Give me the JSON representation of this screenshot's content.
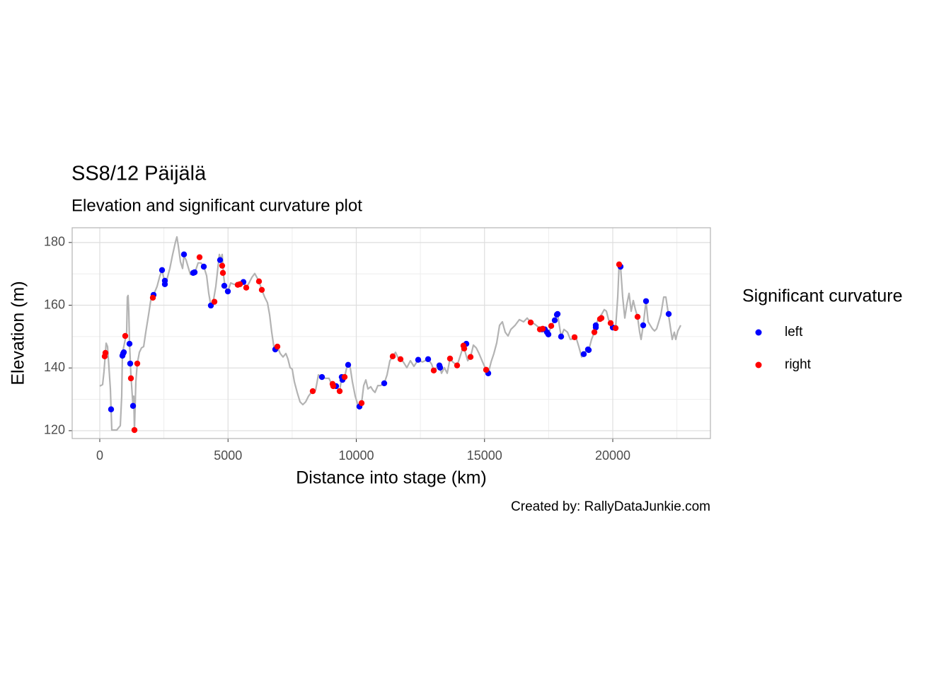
{
  "chart_data": {
    "type": "scatter",
    "title": "SS8/12 Päijälä",
    "subtitle": "Elevation and significant curvature plot",
    "x_label": "Distance into stage (km)",
    "y_label": "Elevation (m)",
    "caption": "Created by: RallyDataJunkie.com",
    "legend_title": "Significant curvature",
    "xlim": [
      -1076,
      23807
    ],
    "ylim": [
      117.5,
      184.7
    ],
    "xticks": [
      0,
      5000,
      10000,
      15000,
      20000
    ],
    "yticks": [
      120,
      140,
      160,
      180
    ],
    "grid": true,
    "line": {
      "color": "#b3b3b3",
      "x": [
        0,
        110,
        166,
        248,
        303,
        359,
        414,
        441,
        469,
        662,
        800,
        855,
        883,
        993,
        1048,
        1076,
        1103,
        1131,
        1159,
        1214,
        1269,
        1297,
        1324,
        1352,
        1407,
        1462,
        1545,
        1628,
        1710,
        1793,
        1903,
        1986,
        2097,
        2234,
        2345,
        2428,
        2538,
        2621,
        2731,
        2841,
        2952,
        3007,
        3062,
        3145,
        3228,
        3283,
        3366,
        3448,
        3531,
        3641,
        3724,
        3834,
        3945,
        4055,
        4166,
        4248,
        4331,
        4441,
        4524,
        4607,
        4662,
        4717,
        4772,
        4828,
        4883,
        4993,
        5103,
        5214,
        5379,
        5490,
        5600,
        5710,
        5821,
        5931,
        6041,
        6124,
        6207,
        6317,
        6428,
        6538,
        6621,
        6703,
        6786,
        6841,
        6924,
        7034,
        7145,
        7255,
        7338,
        7421,
        7503,
        7586,
        7697,
        7807,
        7917,
        8028,
        8138,
        8248,
        8303,
        8414,
        8524,
        8662,
        8800,
        8938,
        9021,
        9131,
        9214,
        9352,
        9434,
        9545,
        9628,
        9683,
        9766,
        9848,
        9959,
        10041,
        10124,
        10207,
        10290,
        10372,
        10455,
        10566,
        10648,
        10731,
        10841,
        10952,
        11090,
        11200,
        11310,
        11421,
        11531,
        11614,
        11724,
        11834,
        11972,
        12110,
        12248,
        12414,
        12579,
        12800,
        12938,
        13021,
        13131,
        13241,
        13324,
        13434,
        13545,
        13655,
        13766,
        13931,
        14041,
        14179,
        14262,
        14345,
        14455,
        14566,
        14676,
        14786,
        14924,
        15062,
        15145,
        15255,
        15366,
        15476,
        15586,
        15697,
        15807,
        15917,
        16028,
        16193,
        16359,
        16524,
        16662,
        16800,
        16938,
        17076,
        17159,
        17269,
        17379,
        17490,
        17600,
        17738,
        17848,
        17986,
        18097,
        18234,
        18345,
        18455,
        18566,
        18676,
        18786,
        18869,
        18979,
        19062,
        19172,
        19283,
        19338,
        19448,
        19559,
        19669,
        19752,
        19834,
        19917,
        20000,
        20110,
        20193,
        20248,
        20303,
        20386,
        20469,
        20552,
        20634,
        20717,
        20800,
        20883,
        20966,
        21048,
        21103,
        21186,
        21297,
        21379,
        21462,
        21545,
        21628,
        21710,
        21793,
        21876,
        21986,
        22069,
        22152,
        22234,
        22317,
        22400,
        22455,
        22538,
        22648
      ],
      "values": [
        134.2,
        134.7,
        138.9,
        147.9,
        146.8,
        140.1,
        133.3,
        126.6,
        120.2,
        120.2,
        121.6,
        131.0,
        144.6,
        149.1,
        151.4,
        162.6,
        163.1,
        158.1,
        148.2,
        137.8,
        131.0,
        127.9,
        131.0,
        120.2,
        135.6,
        141.4,
        145.0,
        146.4,
        146.8,
        151.4,
        157.0,
        161.5,
        163.3,
        166.0,
        169.4,
        171.2,
        167.1,
        168.3,
        171.7,
        176.2,
        180.2,
        181.8,
        178.9,
        173.9,
        171.7,
        175.7,
        174.4,
        172.1,
        169.8,
        170.3,
        170.8,
        173.5,
        173.5,
        172.3,
        169.4,
        163.8,
        159.9,
        162.0,
        166.0,
        172.1,
        176.2,
        174.4,
        176.2,
        169.4,
        166.0,
        164.4,
        167.1,
        166.7,
        166.5,
        166.7,
        167.4,
        165.6,
        167.1,
        168.9,
        170.1,
        168.9,
        167.6,
        164.9,
        162.6,
        160.8,
        157.0,
        151.4,
        146.8,
        145.9,
        146.8,
        144.6,
        143.5,
        144.6,
        142.8,
        140.1,
        139.6,
        135.6,
        132.2,
        129.2,
        128.3,
        129.2,
        131.0,
        132.2,
        132.6,
        132.9,
        137.8,
        137.1,
        136.7,
        136.7,
        135.1,
        134.4,
        134.2,
        132.6,
        137.1,
        137.1,
        140.1,
        141.0,
        140.1,
        135.6,
        131.0,
        128.8,
        127.7,
        128.8,
        134.4,
        136.2,
        133.3,
        134.0,
        132.9,
        132.2,
        134.4,
        134.4,
        135.1,
        137.8,
        142.3,
        143.7,
        145.0,
        143.5,
        142.8,
        141.9,
        140.1,
        142.3,
        140.5,
        142.6,
        141.9,
        142.8,
        141.2,
        139.2,
        140.1,
        140.8,
        138.3,
        140.1,
        138.3,
        143.0,
        141.9,
        140.8,
        143.5,
        147.1,
        144.6,
        142.3,
        143.5,
        147.3,
        146.4,
        144.6,
        141.9,
        139.4,
        138.3,
        141.9,
        144.6,
        148.0,
        153.6,
        154.7,
        151.4,
        150.2,
        152.3,
        153.6,
        155.4,
        154.7,
        155.9,
        154.5,
        154.1,
        153.2,
        152.3,
        152.5,
        151.4,
        150.7,
        153.4,
        155.2,
        157.2,
        150.0,
        152.3,
        151.4,
        149.1,
        149.3,
        149.8,
        146.8,
        143.5,
        144.4,
        145.7,
        145.7,
        149.1,
        151.4,
        153.6,
        155.9,
        157.0,
        158.6,
        158.1,
        155.4,
        154.3,
        152.9,
        152.7,
        162.6,
        173.0,
        172.3,
        162.6,
        155.9,
        160.4,
        163.8,
        158.1,
        161.5,
        158.6,
        156.3,
        151.4,
        149.1,
        153.6,
        161.3,
        154.7,
        153.6,
        152.5,
        151.8,
        152.5,
        154.7,
        157.0,
        162.6,
        162.6,
        158.1,
        153.6,
        149.1,
        151.4,
        149.1,
        151.8,
        153.6
      ]
    },
    "series": [
      {
        "name": "left",
        "color": "#0000ff",
        "x": [
          441,
          883,
          910,
          938,
          1159,
          1186,
          1297,
          2097,
          2428,
          2538,
          2538,
          3283,
          3641,
          3697,
          4055,
          4331,
          4690,
          4855,
          4993,
          5600,
          6841,
          8662,
          9214,
          9434,
          9462,
          9683,
          10124,
          11090,
          12414,
          12800,
          13241,
          13269,
          14290,
          15145,
          17241,
          17352,
          17434,
          17490,
          17738,
          17821,
          17848,
          17986,
          18869,
          19034,
          19062,
          19338,
          19338,
          20000,
          20303,
          21186,
          21297,
          22179
        ],
        "values": [
          126.8,
          143.9,
          144.6,
          145.0,
          147.7,
          141.4,
          127.9,
          163.3,
          171.2,
          167.8,
          166.7,
          176.2,
          170.3,
          170.5,
          172.3,
          159.9,
          174.4,
          166.2,
          164.4,
          167.4,
          145.9,
          137.1,
          134.2,
          137.1,
          136.2,
          141.0,
          127.7,
          135.1,
          142.6,
          142.8,
          140.8,
          140.1,
          147.7,
          138.3,
          152.3,
          152.3,
          151.4,
          150.7,
          155.2,
          157.0,
          157.2,
          150.0,
          144.4,
          145.9,
          145.7,
          153.6,
          152.9,
          152.9,
          172.3,
          153.6,
          161.3,
          157.2
        ]
      },
      {
        "name": "right",
        "color": "#ff0000",
        "x": [
          221,
          193,
          993,
          1214,
          1352,
          1462,
          2069,
          3890,
          4469,
          4772,
          4800,
          5379,
          5462,
          5710,
          6207,
          6317,
          6924,
          8303,
          9076,
          9103,
          9352,
          9545,
          10207,
          11421,
          11724,
          13021,
          13655,
          13931,
          14179,
          14207,
          14455,
          15062,
          16800,
          17159,
          17269,
          17600,
          18510,
          19283,
          19503,
          19559,
          19917,
          20110,
          20248,
          20966
        ],
        "values": [
          144.8,
          143.7,
          150.2,
          136.7,
          120.2,
          141.4,
          162.4,
          175.3,
          161.1,
          172.6,
          170.3,
          166.5,
          166.7,
          165.6,
          167.6,
          164.9,
          146.8,
          132.6,
          134.9,
          134.2,
          132.6,
          137.1,
          128.8,
          143.7,
          142.8,
          139.2,
          143.0,
          140.8,
          147.1,
          146.2,
          143.5,
          139.4,
          154.5,
          152.3,
          152.5,
          153.4,
          149.8,
          151.4,
          155.6,
          155.9,
          154.3,
          152.7,
          173.0,
          156.3
        ]
      }
    ]
  }
}
